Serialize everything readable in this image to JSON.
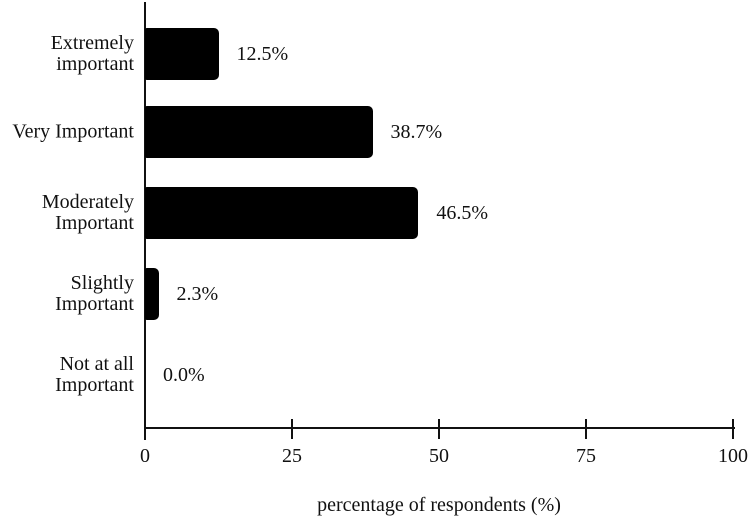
{
  "chart_data": {
    "type": "bar",
    "orientation": "horizontal",
    "categories": [
      "Extremely\nimportant",
      "Very Important",
      "Moderately\nImportant",
      "Slightly\nImportant",
      "Not at all\nImportant"
    ],
    "values": [
      12.5,
      38.7,
      46.5,
      2.3,
      0.0
    ],
    "value_labels": [
      "12.5%",
      "38.7%",
      "46.5%",
      "2.3%",
      "0.0%"
    ],
    "title": "",
    "xlabel": "percentage of respondents (%)",
    "ylabel": "",
    "xlim": [
      0,
      100
    ],
    "x_ticks": [
      0,
      25,
      50,
      75,
      100
    ],
    "x_tick_labels": [
      "0",
      "25",
      "50",
      "75",
      "100"
    ],
    "grid": false,
    "legend": false,
    "bar_color": "#000000",
    "axis_color": "#111111",
    "text_color": "#111111",
    "background_color": "#ffffff"
  }
}
